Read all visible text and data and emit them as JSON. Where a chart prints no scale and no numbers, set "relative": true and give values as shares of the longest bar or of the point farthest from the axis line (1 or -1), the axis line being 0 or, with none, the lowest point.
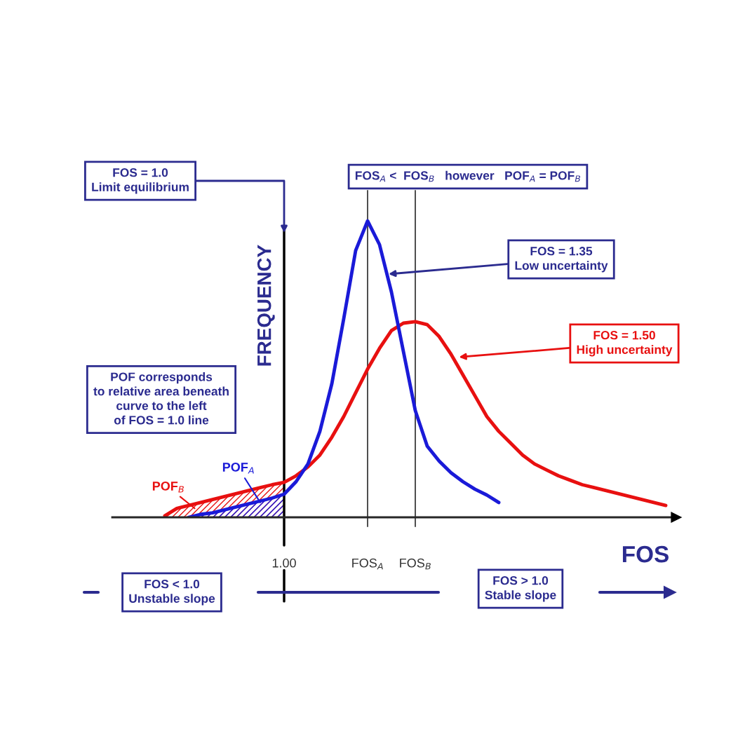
{
  "chart_data": {
    "type": "line",
    "relative": true,
    "xlabel": "FOS",
    "ylabel": "FREQUENCY",
    "categories": [
      null,
      null,
      null,
      null,
      null,
      null,
      null,
      null,
      null,
      null,
      "1.00",
      null,
      null,
      null,
      null,
      null,
      null,
      "FOS$_{A}$",
      null,
      null,
      null,
      "FOS$_{B}$",
      null,
      null,
      null,
      null,
      null,
      null,
      null,
      null,
      null,
      null,
      null,
      null,
      null,
      null,
      null,
      null,
      null,
      null,
      null,
      null,
      null
    ],
    "series": [
      {
        "type": "area",
        "color": "#e81010",
        "values": [
          0.005,
          0.03,
          0.04,
          0.05,
          0.06,
          0.07,
          0.08,
          0.09,
          0.1,
          0.11,
          0.118,
          null,
          null,
          null,
          null,
          null,
          null,
          null,
          null,
          null,
          null,
          null,
          null,
          null,
          null,
          null,
          null,
          null,
          null,
          null,
          null,
          null,
          null,
          null,
          null,
          null,
          null,
          null,
          null,
          null,
          null,
          null,
          null
        ]
      },
      {
        "type": "area",
        "color": "#1a1ad8",
        "values": [
          null,
          null,
          0.0,
          0.01,
          0.015,
          0.025,
          0.035,
          0.045,
          0.055,
          0.065,
          0.078,
          null,
          null,
          null,
          null,
          null,
          null,
          null,
          null,
          null,
          null,
          null,
          null,
          null,
          null,
          null,
          null,
          null,
          null,
          null,
          null,
          null,
          null,
          null,
          null,
          null,
          null,
          null,
          null,
          null,
          null,
          null,
          null
        ]
      },
      {
        "color": "#e81010",
        "values": [
          0.005,
          0.03,
          0.04,
          0.05,
          0.06,
          0.07,
          0.08,
          0.09,
          0.1,
          0.11,
          0.118,
          0.14,
          0.17,
          0.21,
          0.27,
          0.34,
          0.42,
          0.5,
          0.57,
          0.63,
          0.655,
          0.66,
          0.65,
          0.61,
          0.55,
          0.48,
          0.41,
          0.34,
          0.29,
          0.25,
          0.21,
          0.18,
          0.16,
          0.14,
          0.125,
          0.11,
          0.1,
          0.09,
          0.08,
          0.07,
          0.06,
          0.05,
          0.04
        ]
      },
      {
        "color": "#1a1ad8",
        "values": [
          null,
          null,
          0.0,
          0.01,
          0.015,
          0.025,
          0.035,
          0.045,
          0.055,
          0.065,
          0.078,
          0.12,
          0.18,
          0.29,
          0.45,
          0.67,
          0.9,
          1.0,
          0.92,
          0.76,
          0.56,
          0.36,
          0.24,
          0.19,
          0.15,
          0.12,
          0.095,
          0.075,
          0.05,
          null,
          null,
          null,
          null,
          null,
          null,
          null,
          null,
          null,
          null,
          null,
          null,
          null,
          null
        ]
      }
    ],
    "annotations": [
      "FOS = 1.0\nLimit equilibrium",
      "FOS$_{A}$ <  FOS$_{B}$   however   POF$_{A}$ = POF$_{B}$",
      "FOS = 1.35\nLow uncertainty",
      "FOS = 1.50\nHigh uncertainty",
      "POF corresponds\nto relative area beneath\ncurve to the left\nof FOS = 1.0 line",
      "POF$_{A}$",
      "POF$_{B}$",
      "FOS < 1.0\nUnstable slope",
      "FOS > 1.0\nStable slope"
    ],
    "grid": "x",
    "legend": false
  }
}
